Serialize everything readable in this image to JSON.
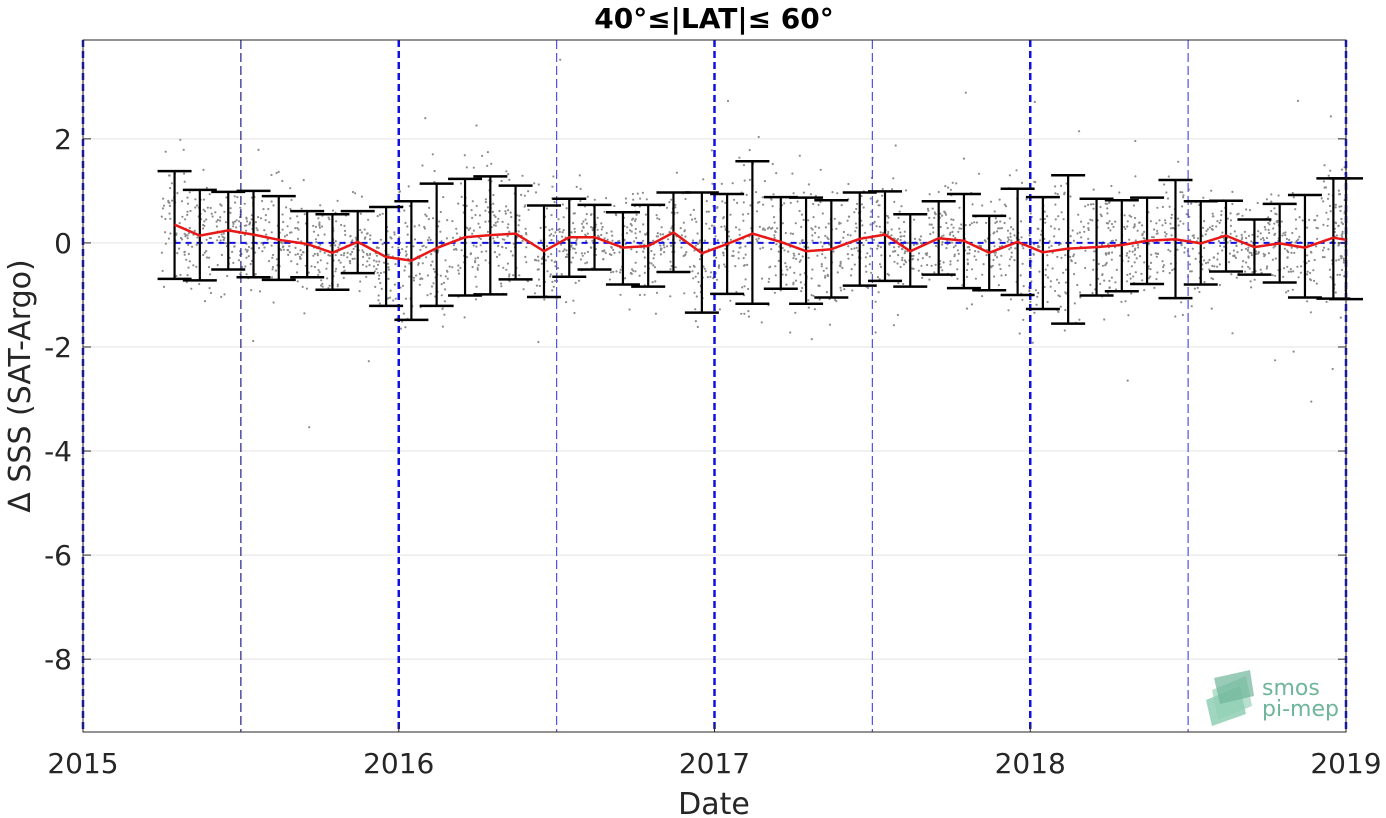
{
  "chart_data": {
    "type": "line",
    "title": "40°≤|LAT|≤ 60°",
    "xlabel": "Date",
    "ylabel": "Δ SSS (SAT-Argo)",
    "xlim": [
      2015.0,
      2019.0
    ],
    "ylim": [
      -9.4,
      3.9
    ],
    "x_ticks": [
      2015,
      2016,
      2017,
      2018,
      2019
    ],
    "x_tick_labels": [
      "2015",
      "2016",
      "2017",
      "2018",
      "2019"
    ],
    "y_ticks": [
      -8,
      -6,
      -4,
      -2,
      0,
      2
    ],
    "y_tick_labels": [
      "-8",
      "-6",
      "-4",
      "-2",
      "0",
      "2"
    ],
    "grid": true,
    "colors": {
      "mean_line": "#e81818",
      "error_bars": "#000000",
      "scatter": "#8c8c8c",
      "year_lines": "#1010e0",
      "halfyear_lines": "#5050e8",
      "zero_line": "#1010e0"
    },
    "vertical_lines_year": [
      2015.0,
      2016.0,
      2017.0,
      2018.0,
      2019.0
    ],
    "vertical_lines_halfyear": [
      2015.5,
      2016.5,
      2017.5,
      2018.5
    ],
    "zero_line_range": [
      2015.29,
      2019.0
    ],
    "series": [
      {
        "x": [
          2015.29,
          2015.37,
          2015.46,
          2015.54,
          2015.62,
          2015.71,
          2015.79,
          2015.87,
          2015.96,
          2016.04,
          2016.12,
          2016.21,
          2016.29,
          2016.37,
          2016.46,
          2016.54,
          2016.62,
          2016.71,
          2016.79,
          2016.87,
          2016.96,
          2017.04,
          2017.12,
          2017.21,
          2017.29,
          2017.37,
          2017.46,
          2017.54,
          2017.62,
          2017.71,
          2017.79,
          2017.87,
          2017.96,
          2018.04,
          2018.12,
          2018.21,
          2018.29,
          2018.37,
          2018.46,
          2018.54,
          2018.62,
          2018.71,
          2018.79,
          2018.87,
          2018.96,
          2019.0
        ],
        "y": [
          0.35,
          0.14,
          0.24,
          0.16,
          0.06,
          -0.02,
          -0.19,
          0.02,
          -0.27,
          -0.34,
          -0.1,
          0.11,
          0.15,
          0.18,
          -0.16,
          0.11,
          0.11,
          -0.09,
          -0.06,
          0.2,
          -0.2,
          -0.02,
          0.18,
          0.02,
          -0.16,
          -0.12,
          0.08,
          0.16,
          -0.16,
          0.09,
          0.04,
          -0.19,
          0.02,
          -0.18,
          -0.11,
          -0.08,
          -0.04,
          0.04,
          0.07,
          -0.01,
          0.14,
          -0.08,
          -0.01,
          -0.09,
          0.1,
          0.06
        ],
        "err_low": [
          -0.69,
          -0.72,
          -0.51,
          -0.66,
          -0.71,
          -0.66,
          -0.9,
          -0.58,
          -1.21,
          -1.48,
          -1.21,
          -1.01,
          -0.99,
          -0.7,
          -1.04,
          -0.65,
          -0.51,
          -0.8,
          -0.84,
          -0.56,
          -1.34,
          -0.98,
          -1.17,
          -0.88,
          -1.17,
          -1.05,
          -0.82,
          -0.73,
          -0.84,
          -0.61,
          -0.87,
          -0.91,
          -1.0,
          -1.27,
          -1.55,
          -1.01,
          -0.93,
          -0.79,
          -1.06,
          -0.8,
          -0.55,
          -0.61,
          -0.76,
          -1.05,
          -1.07,
          -1.08
        ],
        "err_high": [
          1.38,
          1.02,
          0.98,
          1.0,
          0.9,
          0.61,
          0.55,
          0.61,
          0.69,
          0.8,
          1.14,
          1.23,
          1.28,
          1.1,
          0.72,
          0.85,
          0.73,
          0.59,
          0.73,
          0.97,
          0.97,
          0.94,
          1.57,
          0.88,
          0.87,
          0.82,
          0.97,
          0.99,
          0.55,
          0.8,
          0.94,
          0.52,
          1.04,
          0.88,
          1.3,
          0.85,
          0.82,
          0.87,
          1.21,
          0.8,
          0.81,
          0.45,
          0.75,
          0.92,
          1.24,
          1.24
        ]
      }
    ],
    "scatter_note_visible": false
  },
  "logo": {
    "line1": "smos",
    "line2": "pi-mep"
  }
}
